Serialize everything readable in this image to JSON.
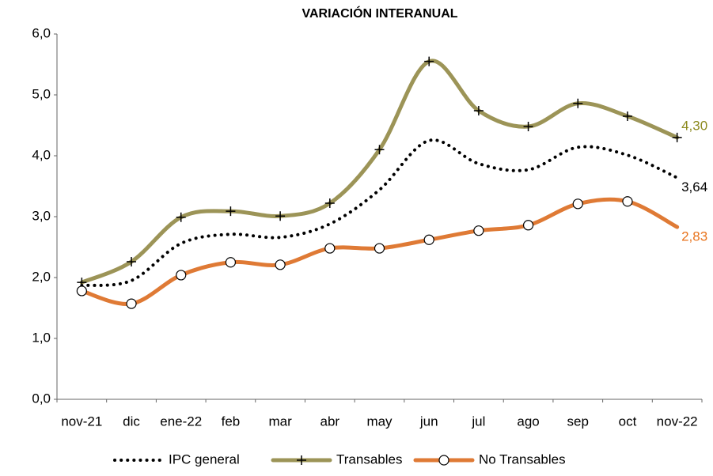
{
  "chart_data": {
    "type": "line",
    "title": "VARIACIÓN INTERANUAL",
    "categories": [
      "nov-21",
      "dic",
      "ene-22",
      "feb",
      "mar",
      "abr",
      "may",
      "jun",
      "jul",
      "ago",
      "sep",
      "oct",
      "nov-22"
    ],
    "ylim": [
      0,
      6
    ],
    "yticks": [
      {
        "value": 0,
        "label": "0,0"
      },
      {
        "value": 1,
        "label": "1,0"
      },
      {
        "value": 2,
        "label": "2,0"
      },
      {
        "value": 3,
        "label": "3,0"
      },
      {
        "value": 4,
        "label": "4,0"
      },
      {
        "value": 5,
        "label": "5,0"
      },
      {
        "value": 6,
        "label": "6,0"
      }
    ],
    "smooth": true,
    "series": [
      {
        "name": "IPC general",
        "color": "#000000",
        "line_style": "dotted",
        "marker": "none",
        "values": [
          1.87,
          1.95,
          2.56,
          2.71,
          2.66,
          2.88,
          3.44,
          4.25,
          3.87,
          3.77,
          4.14,
          4.01,
          3.64
        ],
        "value_labels": [
          null,
          null,
          null,
          null,
          null,
          null,
          null,
          null,
          null,
          null,
          null,
          null,
          "3,64"
        ],
        "label_color": "#000000"
      },
      {
        "name": "Transables",
        "color": "#9c9457",
        "line_style": "solid",
        "marker": "plus",
        "values": [
          1.92,
          2.26,
          2.99,
          3.09,
          3.01,
          3.22,
          4.1,
          5.55,
          4.74,
          4.48,
          4.86,
          4.65,
          4.3
        ],
        "value_labels": [
          null,
          null,
          null,
          null,
          null,
          null,
          null,
          null,
          null,
          null,
          null,
          null,
          "4,30"
        ],
        "label_color": "#8c8a1e"
      },
      {
        "name": "No Transables",
        "color": "#df7a35",
        "line_style": "solid",
        "marker": "circle",
        "values": [
          1.78,
          1.57,
          2.04,
          2.25,
          2.21,
          2.48,
          2.48,
          2.62,
          2.77,
          2.86,
          3.21,
          3.25,
          2.83
        ],
        "value_labels": [
          null,
          null,
          null,
          null,
          null,
          null,
          null,
          null,
          null,
          null,
          null,
          null,
          "2,83"
        ],
        "label_color": "#e8731c"
      }
    ]
  }
}
